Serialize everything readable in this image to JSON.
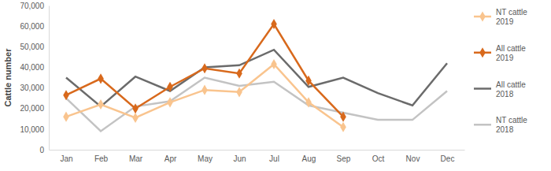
{
  "chart_data": {
    "type": "line",
    "y_label": "Cattle number",
    "categories": [
      "Jan",
      "Feb",
      "Mar",
      "Apr",
      "May",
      "Jun",
      "Jul",
      "Aug",
      "Sep",
      "Oct",
      "Nov",
      "Dec"
    ],
    "series": [
      {
        "name": "NT cattle 2019",
        "color": "#f9c48e",
        "marker": "diamond",
        "values": [
          16000,
          22000,
          15500,
          23000,
          29000,
          28000,
          41500,
          23000,
          11000,
          null,
          null,
          null
        ]
      },
      {
        "name": "All cattle 2019",
        "color": "#d8691c",
        "marker": "diamond",
        "values": [
          26500,
          34500,
          20000,
          30500,
          39500,
          37000,
          61000,
          33500,
          16000,
          null,
          null,
          null
        ]
      },
      {
        "name": "All cattle 2018",
        "color": "#6b6b6b",
        "marker": "none",
        "values": [
          35000,
          21000,
          35500,
          28500,
          40000,
          41000,
          48500,
          30500,
          35000,
          27500,
          21500,
          42000
        ]
      },
      {
        "name": "NT cattle 2018",
        "color": "#c3c3c3",
        "marker": "none",
        "values": [
          25000,
          9000,
          21000,
          23500,
          35000,
          31000,
          33000,
          21500,
          18000,
          14500,
          14500,
          28500
        ]
      }
    ],
    "ylim": [
      0,
      70000
    ],
    "yticks": [
      0,
      {
        "value": 10000,
        "label": "10,000"
      },
      {
        "value": 20000,
        "label": "20,000"
      },
      {
        "value": 30000,
        "label": "30,000"
      },
      {
        "value": 40000,
        "label": "40,000"
      },
      {
        "value": 50000,
        "label": "50,000"
      },
      {
        "value": 60000,
        "label": "60,000"
      },
      {
        "value": 70000,
        "label": "70,000"
      }
    ],
    "grid": false,
    "legend": "right"
  }
}
